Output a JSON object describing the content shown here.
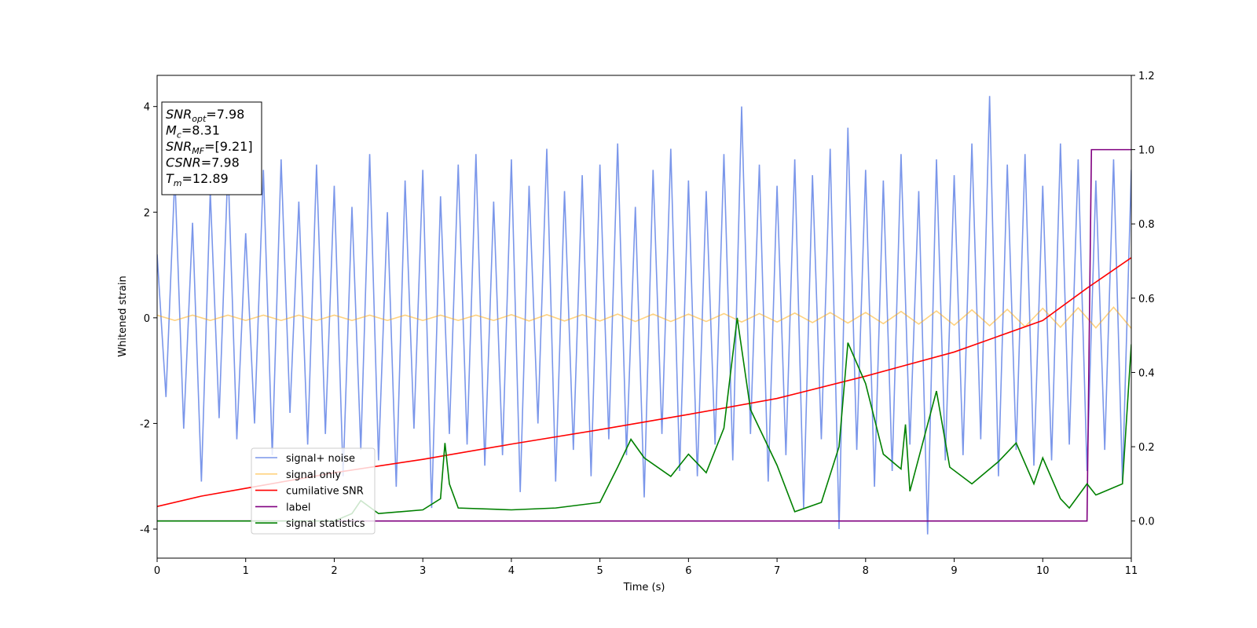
{
  "chart_data": {
    "type": "line",
    "xlabel": "Time (s)",
    "ylabel": "Whitened strain",
    "xlim": [
      0,
      11
    ],
    "xticks": [
      0,
      1,
      2,
      3,
      4,
      5,
      6,
      7,
      8,
      9,
      10,
      11
    ],
    "ylim": [
      -4.55,
      4.59
    ],
    "yticks": [
      -4,
      -2,
      0,
      2,
      4
    ],
    "y2lim": [
      -0.1,
      1.2
    ],
    "y2ticks": [
      {
        "value": 0,
        "label": "0.0"
      },
      {
        "value": 0.2,
        "label": "0.2"
      },
      {
        "value": 0.4,
        "label": "0.4"
      },
      {
        "value": 0.6,
        "label": "0.6"
      },
      {
        "value": 0.8,
        "label": "0.8"
      },
      {
        "value": 1.0,
        "label": "1.0"
      },
      {
        "value": 1.2,
        "label": "1.2"
      }
    ],
    "legend": "lower left",
    "annotations": [
      {
        "symbol": "SNR",
        "sub": "opt",
        "text": "=7.98"
      },
      {
        "symbol": "M",
        "sub": "c",
        "text": "=8.31"
      },
      {
        "symbol": "SNR",
        "sub": "MF",
        "text": "=[9.21]"
      },
      {
        "symbol": "CSNR",
        "text": "=7.98"
      },
      {
        "symbol": "T",
        "sub": "m",
        "text": "=12.89"
      }
    ],
    "series": [
      {
        "name": "signal+ noise",
        "color": "royalblue",
        "opacity": 0.7,
        "x": [
          0,
          0.1,
          0.2,
          0.3,
          0.4,
          0.5,
          0.6,
          0.7,
          0.8,
          0.9,
          1,
          1.1,
          1.2,
          1.3,
          1.4,
          1.5,
          1.6,
          1.7,
          1.8,
          1.9,
          2,
          2.1,
          2.2,
          2.3,
          2.4,
          2.5,
          2.6,
          2.7,
          2.8,
          2.9,
          3,
          3.1,
          3.2,
          3.3,
          3.4,
          3.5,
          3.6,
          3.7,
          3.8,
          3.9,
          4,
          4.1,
          4.2,
          4.3,
          4.4,
          4.5,
          4.6,
          4.7,
          4.8,
          4.9,
          5,
          5.1,
          5.2,
          5.3,
          5.4,
          5.5,
          5.6,
          5.7,
          5.8,
          5.9,
          6,
          6.1,
          6.2,
          6.3,
          6.4,
          6.5,
          6.6,
          6.7,
          6.8,
          6.9,
          7,
          7.1,
          7.2,
          7.3,
          7.4,
          7.5,
          7.6,
          7.7,
          7.8,
          7.9,
          8,
          8.1,
          8.2,
          8.3,
          8.4,
          8.5,
          8.6,
          8.7,
          8.8,
          8.9,
          9,
          9.1,
          9.2,
          9.3,
          9.4,
          9.5,
          9.6,
          9.7,
          9.8,
          9.9,
          10,
          10.1,
          10.2,
          10.3,
          10.4,
          10.5,
          10.6,
          10.7,
          10.8,
          10.9,
          11
        ],
        "values": [
          1.2,
          -1.5,
          2.7,
          -2.1,
          1.8,
          -3.1,
          2.4,
          -1.9,
          2.9,
          -2.3,
          1.6,
          -2.0,
          2.8,
          -2.6,
          3.0,
          -1.8,
          2.2,
          -2.4,
          2.9,
          -2.2,
          2.5,
          -3.0,
          2.1,
          -2.5,
          3.1,
          -2.7,
          2.0,
          -3.2,
          2.6,
          -2.1,
          2.8,
          -3.6,
          2.3,
          -2.2,
          2.9,
          -2.4,
          3.1,
          -2.8,
          2.2,
          -2.6,
          3.0,
          -3.3,
          2.5,
          -2.0,
          3.2,
          -3.1,
          2.4,
          -2.5,
          2.7,
          -3.0,
          2.9,
          -2.3,
          3.3,
          -2.6,
          2.1,
          -3.4,
          2.8,
          -2.2,
          3.2,
          -2.9,
          2.6,
          -3.0,
          2.4,
          -2.4,
          3.1,
          -2.7,
          4.0,
          -2.2,
          2.9,
          -3.1,
          2.5,
          -2.6,
          3.0,
          -3.6,
          2.7,
          -2.3,
          3.2,
          -4.0,
          3.6,
          -2.5,
          2.8,
          -3.2,
          2.6,
          -2.9,
          3.1,
          -2.4,
          2.4,
          -4.1,
          3.0,
          -2.7,
          2.7,
          -2.6,
          3.3,
          -2.3,
          4.2,
          -3.0,
          2.9,
          -2.5,
          3.1,
          -2.8,
          2.5,
          -2.7,
          3.3,
          -2.4,
          3.0,
          -2.9,
          2.6,
          -2.5,
          3.0,
          -3.1,
          2.8
        ]
      },
      {
        "name": "signal only",
        "color": "orange",
        "opacity": 0.5,
        "x": [
          0,
          0.2,
          0.4,
          0.6,
          0.8,
          1,
          1.2,
          1.4,
          1.6,
          1.8,
          2,
          2.2,
          2.4,
          2.6,
          2.8,
          3,
          3.2,
          3.4,
          3.6,
          3.8,
          4,
          4.2,
          4.4,
          4.6,
          4.8,
          5,
          5.2,
          5.4,
          5.6,
          5.8,
          6,
          6.2,
          6.4,
          6.6,
          6.8,
          7,
          7.2,
          7.4,
          7.6,
          7.8,
          8,
          8.2,
          8.4,
          8.6,
          8.8,
          9,
          9.2,
          9.4,
          9.6,
          9.8,
          10,
          10.2,
          10.4,
          10.6,
          10.8,
          11
        ],
        "values": [
          0.05,
          -0.05,
          0.05,
          -0.05,
          0.05,
          -0.05,
          0.05,
          -0.05,
          0.05,
          -0.05,
          0.05,
          -0.05,
          0.05,
          -0.05,
          0.05,
          -0.05,
          0.05,
          -0.05,
          0.05,
          -0.05,
          0.06,
          -0.06,
          0.06,
          -0.06,
          0.06,
          -0.06,
          0.07,
          -0.07,
          0.07,
          -0.07,
          0.07,
          -0.07,
          0.08,
          -0.08,
          0.08,
          -0.08,
          0.09,
          -0.09,
          0.1,
          -0.1,
          0.1,
          -0.11,
          0.12,
          -0.12,
          0.13,
          -0.14,
          0.15,
          -0.15,
          0.16,
          -0.17,
          0.18,
          -0.18,
          0.19,
          -0.19,
          0.2,
          -0.2
        ]
      },
      {
        "name": "cumilative SNR",
        "color": "red",
        "axis": "y2",
        "x": [
          0,
          0.5,
          1,
          2,
          3,
          4,
          5,
          6,
          7,
          8,
          9,
          10,
          10.5,
          11
        ],
        "values": [
          0.039,
          0.067,
          0.088,
          0.13,
          0.166,
          0.207,
          0.246,
          0.287,
          0.33,
          0.39,
          0.455,
          0.54,
          0.627,
          0.709
        ]
      },
      {
        "name": "label",
        "color": "purple",
        "axis": "y2",
        "x": [
          0,
          10.5,
          10.55,
          11
        ],
        "values": [
          0,
          0,
          1,
          1
        ]
      },
      {
        "name": "signal statistics",
        "color": "green",
        "axis": "y2",
        "x": [
          0,
          1,
          2,
          2.2,
          2.3,
          2.5,
          3,
          3.2,
          3.25,
          3.3,
          3.4,
          4,
          4.5,
          5,
          5.2,
          5.35,
          5.5,
          5.8,
          6,
          6.2,
          6.4,
          6.55,
          6.7,
          7,
          7.2,
          7.5,
          7.7,
          7.8,
          8,
          8.2,
          8.4,
          8.45,
          8.5,
          8.8,
          8.95,
          9.2,
          9.5,
          9.7,
          9.9,
          10,
          10.2,
          10.3,
          10.5,
          10.6,
          10.9,
          11
        ],
        "values": [
          0,
          0,
          0,
          0.02,
          0.055,
          0.02,
          0.03,
          0.06,
          0.21,
          0.1,
          0.035,
          0.03,
          0.035,
          0.05,
          0.145,
          0.22,
          0.17,
          0.12,
          0.18,
          0.13,
          0.25,
          0.547,
          0.3,
          0.15,
          0.025,
          0.05,
          0.2,
          0.48,
          0.37,
          0.18,
          0.14,
          0.26,
          0.08,
          0.35,
          0.145,
          0.1,
          0.16,
          0.21,
          0.1,
          0.17,
          0.06,
          0.035,
          0.1,
          0.07,
          0.1,
          0.476
        ]
      }
    ]
  }
}
